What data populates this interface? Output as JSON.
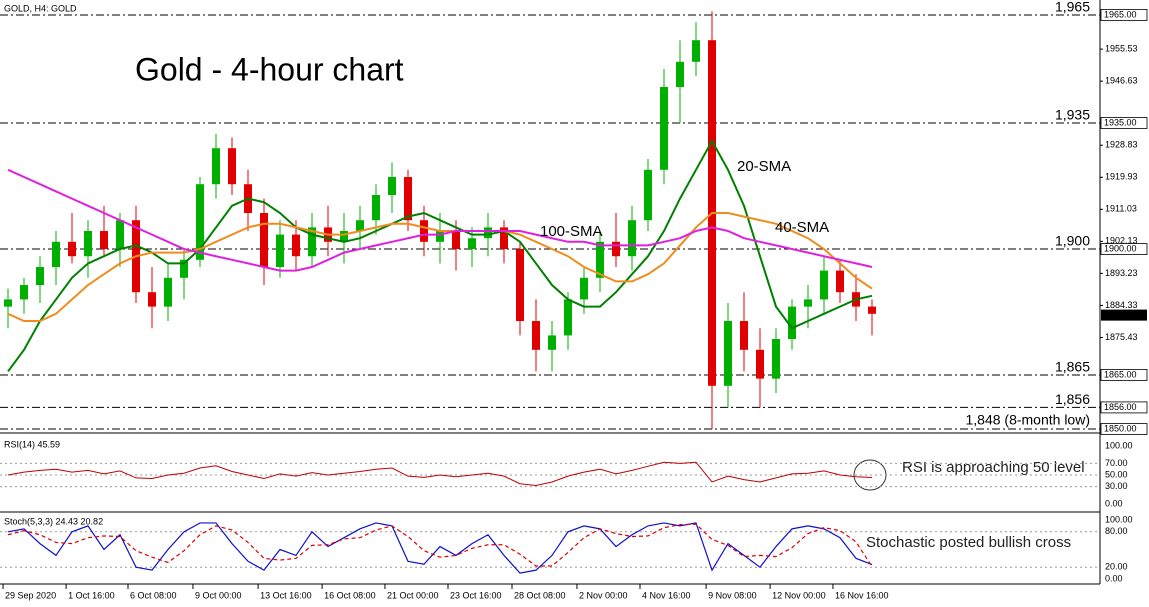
{
  "chart_data": [
    {
      "type": "candlestick",
      "header": "GOLD, H4:  GOLD",
      "title": "Gold - 4-hour chart",
      "up_color": "#00b000",
      "down_color": "#e00000",
      "open": [
        1884,
        1886,
        1890,
        1895,
        1902,
        1898,
        1905,
        1900,
        1908,
        1888,
        1884,
        1892,
        1897,
        1918,
        1928,
        1918,
        1910,
        1895,
        1904,
        1898,
        1906,
        1902,
        1905,
        1908,
        1915,
        1920,
        1908,
        1902,
        1905,
        1900,
        1903,
        1906,
        1900,
        1880,
        1872,
        1876,
        1886,
        1892,
        1902,
        1898,
        1908,
        1922,
        1945,
        1952,
        1958,
        1862,
        1880,
        1872,
        1864,
        1875,
        1884,
        1886,
        1894,
        1888,
        1884
      ],
      "high": [
        1889,
        1892,
        1898,
        1905,
        1910,
        1908,
        1912,
        1910,
        1912,
        1895,
        1896,
        1900,
        1920,
        1932,
        1931,
        1922,
        1914,
        1908,
        1908,
        1910,
        1912,
        1910,
        1912,
        1918,
        1924,
        1922,
        1912,
        1910,
        1908,
        1906,
        1910,
        1908,
        1902,
        1886,
        1880,
        1888,
        1895,
        1905,
        1910,
        1912,
        1925,
        1950,
        1958,
        1963,
        1966,
        1885,
        1888,
        1878,
        1878,
        1886,
        1890,
        1898,
        1897,
        1893,
        1886
      ],
      "low": [
        1878,
        1882,
        1885,
        1890,
        1896,
        1892,
        1898,
        1895,
        1885,
        1878,
        1880,
        1886,
        1895,
        1914,
        1915,
        1905,
        1890,
        1892,
        1894,
        1895,
        1898,
        1896,
        1900,
        1904,
        1910,
        1905,
        1898,
        1896,
        1894,
        1895,
        1898,
        1896,
        1876,
        1866,
        1866,
        1872,
        1882,
        1888,
        1895,
        1894,
        1905,
        1918,
        1935,
        1948,
        1850,
        1856,
        1866,
        1856,
        1860,
        1872,
        1878,
        1882,
        1885,
        1880,
        1876
      ],
      "close": [
        1886,
        1890,
        1895,
        1902,
        1898,
        1905,
        1900,
        1908,
        1888,
        1884,
        1892,
        1897,
        1918,
        1928,
        1918,
        1910,
        1895,
        1904,
        1898,
        1906,
        1902,
        1905,
        1908,
        1915,
        1920,
        1908,
        1902,
        1905,
        1900,
        1903,
        1906,
        1900,
        1880,
        1872,
        1876,
        1886,
        1892,
        1902,
        1898,
        1908,
        1922,
        1945,
        1952,
        1958,
        1862,
        1880,
        1872,
        1864,
        1875,
        1884,
        1886,
        1894,
        1888,
        1884,
        1882
      ],
      "series": [
        {
          "name": "20-SMA",
          "color": "#008000",
          "values": [
            1866,
            1872,
            1880,
            1886,
            1892,
            1896,
            1898,
            1900,
            1901,
            1899,
            1896,
            1896,
            1900,
            1906,
            1912,
            1914,
            1913,
            1910,
            1906,
            1904,
            1903,
            1902,
            1903,
            1905,
            1907,
            1909,
            1910,
            1908,
            1906,
            1904,
            1904,
            1905,
            1902,
            1896,
            1890,
            1886,
            1884,
            1884,
            1888,
            1893,
            1898,
            1905,
            1914,
            1922,
            1930,
            1922,
            1912,
            1898,
            1884,
            1878,
            1880,
            1882,
            1884,
            1886,
            1887
          ]
        },
        {
          "name": "40-SMA",
          "color": "#f08c1e",
          "values": [
            1882,
            1880,
            1880,
            1882,
            1886,
            1890,
            1893,
            1896,
            1898,
            1899,
            1899,
            1899,
            1900,
            1902,
            1904,
            1906,
            1907,
            1907,
            1906,
            1905,
            1904,
            1904,
            1905,
            1906,
            1907,
            1907,
            1906,
            1905,
            1905,
            1905,
            1905,
            1905,
            1904,
            1902,
            1900,
            1898,
            1895,
            1893,
            1891,
            1891,
            1893,
            1896,
            1901,
            1906,
            1910,
            1910,
            1909,
            1908,
            1907,
            1905,
            1903,
            1900,
            1896,
            1892,
            1889
          ]
        },
        {
          "name": "100-SMA",
          "color": "#e020e0",
          "values": [
            1922,
            1920,
            1918,
            1916,
            1914,
            1912,
            1910,
            1908,
            1906,
            1904,
            1902,
            1900,
            1899,
            1898,
            1897,
            1896,
            1895,
            1894,
            1894,
            1895,
            1897,
            1899,
            1900,
            1901,
            1902,
            1903,
            1904,
            1904,
            1905,
            1905,
            1905,
            1905,
            1905,
            1904,
            1903,
            1902,
            1902,
            1901,
            1901,
            1901,
            1901,
            1902,
            1903,
            1905,
            1906,
            1905,
            1903,
            1902,
            1901,
            1900,
            1899,
            1898,
            1897,
            1896,
            1895
          ]
        }
      ],
      "xlim": [
        -0.5,
        68.25
      ],
      "ylim": [
        1849.17,
        1969.17
      ],
      "yticks": [
        1955.53,
        1946.63,
        1928.83,
        1919.93,
        1911.03,
        1902.13,
        1893.23,
        1884.33,
        1875.43
      ],
      "price_boxes": [
        {
          "value": 1965,
          "label": "1965.00"
        },
        {
          "value": 1935,
          "label": "1935.00"
        },
        {
          "value": 1900,
          "label": "1900.00"
        },
        {
          "value": 1865,
          "label": "1865.00"
        },
        {
          "value": 1856,
          "label": "1856.00"
        },
        {
          "value": 1850,
          "label": "1850.00"
        }
      ],
      "current_price": 1881.64,
      "levels": [
        {
          "value": 1965,
          "label": "1,965",
          "color": "#ff0000"
        },
        {
          "value": 1935,
          "label": "1,935",
          "color": "#ff0000"
        },
        {
          "value": 1900,
          "label": "1,900",
          "color": "#ff0000"
        },
        {
          "value": 1865,
          "label": "1,865",
          "color": "#1a8a1a"
        },
        {
          "value": 1856,
          "label": "1,856",
          "color": "#1a8a1a"
        },
        {
          "value": 1848,
          "label": "1,848 (8-month low)",
          "color": "#1a8a1a"
        }
      ],
      "xticks": [
        {
          "value": -0.31,
          "label": "29 Sep 2020"
        },
        {
          "value": 3.63,
          "label": "1 Oct 16:00"
        },
        {
          "value": 7.5,
          "label": "6 Oct 08:00"
        },
        {
          "value": 11.56,
          "label": "9 Oct 00:00"
        },
        {
          "value": 15.63,
          "label": "13 Oct 16:00"
        },
        {
          "value": 19.63,
          "label": "16 Oct 08:00"
        },
        {
          "value": 23.56,
          "label": "21 Oct 00:00"
        },
        {
          "value": 27.5,
          "label": "23 Oct 16:00"
        },
        {
          "value": 31.5,
          "label": "28 Oct 08:00"
        },
        {
          "value": 35.56,
          "label": "2 Nov 00:00"
        },
        {
          "value": 39.5,
          "label": "4 Nov 16:00"
        },
        {
          "value": 43.63,
          "label": "9 Nov 08:00"
        },
        {
          "value": 47.63,
          "label": "12 Nov 00:00"
        },
        {
          "value": 51.56,
          "label": "16 Nov 16:00"
        }
      ]
    },
    {
      "type": "line",
      "title": "RSI(14) 45.59",
      "color": "#c00000",
      "values": [
        50,
        55,
        58,
        60,
        55,
        58,
        52,
        57,
        45,
        44,
        50,
        53,
        62,
        66,
        56,
        50,
        44,
        52,
        48,
        54,
        50,
        53,
        56,
        60,
        62,
        48,
        46,
        50,
        47,
        50,
        53,
        48,
        35,
        32,
        38,
        48,
        55,
        60,
        52,
        58,
        65,
        72,
        70,
        72,
        38,
        48,
        42,
        38,
        45,
        52,
        53,
        57,
        50,
        47,
        45.59
      ],
      "ylim": [
        0,
        100
      ],
      "yticks": [
        {
          "value": 100,
          "label": "100.00"
        },
        {
          "value": 70,
          "label": "70.00"
        },
        {
          "value": 50,
          "label": "50.00"
        },
        {
          "value": 30,
          "label": "30.00"
        },
        {
          "value": 0,
          "label": "0.00"
        }
      ],
      "annotation": "RSI is approaching 50 level"
    },
    {
      "type": "line",
      "title": "Stoch(5,3,3) 24.43 20.82",
      "series": [
        {
          "color": "#1010d0",
          "values": [
            80,
            85,
            60,
            40,
            80,
            90,
            50,
            75,
            20,
            15,
            50,
            80,
            95,
            95,
            60,
            30,
            15,
            50,
            40,
            80,
            55,
            70,
            85,
            95,
            90,
            30,
            25,
            55,
            40,
            60,
            75,
            40,
            10,
            15,
            40,
            80,
            90,
            85,
            55,
            75,
            90,
            95,
            90,
            95,
            15,
            60,
            40,
            20,
            55,
            85,
            90,
            85,
            70,
            35,
            24.43
          ]
        },
        {
          "color": "#e00000",
          "dashed": true,
          "values": [
            75,
            82,
            75,
            62,
            60,
            70,
            73,
            72,
            48,
            37,
            28,
            48,
            75,
            90,
            83,
            62,
            35,
            32,
            35,
            57,
            58,
            68,
            70,
            83,
            90,
            72,
            48,
            37,
            40,
            52,
            58,
            58,
            42,
            22,
            22,
            45,
            70,
            85,
            77,
            72,
            73,
            87,
            92,
            93,
            67,
            57,
            38,
            40,
            38,
            53,
            77,
            87,
            82,
            63,
            20.82
          ]
        }
      ],
      "ylim": [
        0,
        100
      ],
      "yticks": [
        {
          "value": 100,
          "label": "100.00"
        },
        {
          "value": 80,
          "label": "80.00"
        },
        {
          "value": 20,
          "label": "20.00"
        },
        {
          "value": 0,
          "label": "0.00"
        }
      ],
      "annotation": "Stochastic posted bullish cross"
    }
  ]
}
